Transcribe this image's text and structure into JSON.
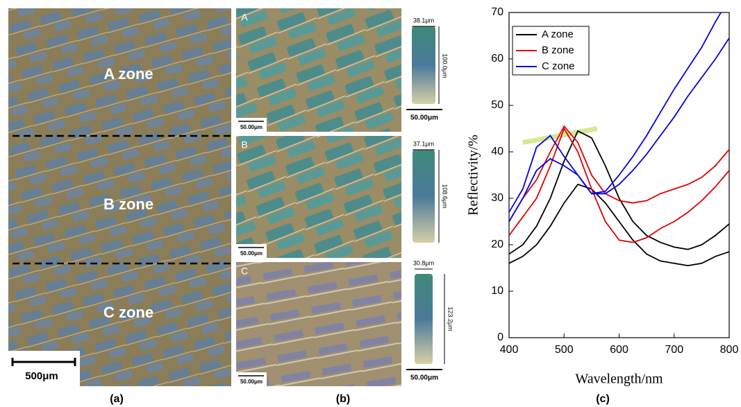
{
  "panel_a": {
    "zones": [
      "A zone",
      "B zone",
      "C zone"
    ],
    "scale_bar": "500μm",
    "caption": "(a)"
  },
  "panel_b": {
    "caption": "(b)",
    "images": [
      {
        "letter": "A",
        "scale_bar": "50.00μm",
        "cell_width": "38.1μm",
        "cell_length": "100.0μm",
        "cell_scale_bar": "50.00μm"
      },
      {
        "letter": "B",
        "scale_bar": "50.00μm",
        "cell_width": "37.1μm",
        "cell_length": "108.6μm"
      },
      {
        "letter": "C",
        "scale_bar": "50.00μm",
        "cell_width": "30.8μm",
        "cell_length": "123.2μm",
        "cell_scale_bar": "50.00μm"
      }
    ]
  },
  "chart_data": {
    "type": "line",
    "caption": "(c)",
    "xlabel": "Wavelength/nm",
    "ylabel": "Reflectivity/%",
    "x": [
      400,
      425,
      450,
      475,
      500,
      525,
      550,
      575,
      600,
      625,
      650,
      675,
      700,
      725,
      750,
      775,
      800
    ],
    "xlim": [
      400,
      800
    ],
    "xticks": [
      400,
      500,
      600,
      700,
      800
    ],
    "ylim": [
      0,
      70
    ],
    "yticks": [
      0,
      10,
      20,
      30,
      40,
      50,
      60,
      70
    ],
    "grid": false,
    "legend": "upper left",
    "series": [
      {
        "name": "A zone",
        "color": "#000000",
        "curves": [
          {
            "values": [
              18,
              20,
              24,
              30,
              38,
              44.5,
              43,
              37,
              30,
              25,
              22,
              20.5,
              19.5,
              19,
              20,
              22,
              24.5
            ]
          },
          {
            "values": [
              16,
              17.5,
              20,
              24,
              29,
              33,
              32,
              29,
              25,
              21,
              18,
              16.5,
              16,
              15.5,
              16,
              17.5,
              18.5
            ]
          }
        ]
      },
      {
        "name": "B zone",
        "color": "#e00000",
        "curves": [
          {
            "values": [
              25,
              30,
              34,
              40,
              45.5,
              42,
              35,
              31,
              29.5,
              29,
              29.5,
              31,
              32,
              33,
              34.5,
              37,
              40.5
            ]
          },
          {
            "values": [
              22,
              26,
              30,
              37,
              45,
              40,
              32,
              25,
              21,
              20.5,
              21.5,
              23.5,
              25,
              27,
              29.5,
              32.5,
              36
            ]
          }
        ]
      },
      {
        "name": "C zone",
        "color": "#0000e0",
        "curves": [
          {
            "values": [
              27,
              32,
              41,
              43.5,
              39,
              35,
              31,
              31.5,
              35,
              39,
              43.5,
              48.5,
              53.5,
              58,
              62.5,
              68,
              73
            ]
          },
          {
            "values": [
              25,
              30,
              36,
              38.5,
              37,
              35,
              31,
              31,
              33,
              36,
              39.5,
              43.5,
              47.5,
              52,
              56,
              60,
              64.5
            ]
          }
        ]
      }
    ]
  }
}
